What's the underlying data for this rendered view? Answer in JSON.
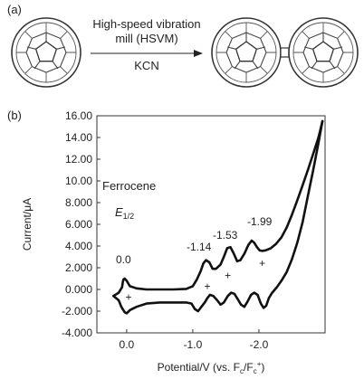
{
  "panel_a_label": "(a)",
  "panel_b_label": "(b)",
  "reaction": {
    "condition_line1": "High-speed vibration",
    "condition_line2": "mill (HSVM)",
    "reagent": "KCN"
  },
  "chart_data": {
    "type": "line",
    "title": "",
    "xlabel": "Potential/V (vs. Fc/Fc+)",
    "ylabel": "Current/μA",
    "x_tick_labels": [
      "0.0",
      "-1.0",
      "-2.0"
    ],
    "x_tick_values": [
      0.0,
      -1.0,
      -2.0
    ],
    "y_tick_labels": [
      "-4.000",
      "-2.000",
      "0.000",
      "2.000",
      "4.000",
      "6.000",
      "8.000",
      "10.00",
      "12.00",
      "14.00",
      "16.00"
    ],
    "y_tick_values": [
      -4,
      -2,
      0,
      2,
      4,
      6,
      8,
      10,
      12,
      14,
      16
    ],
    "xlim": [
      0.45,
      -3.0
    ],
    "ylim": [
      -4,
      16
    ],
    "annotations": {
      "ferrocene": "Ferrocene",
      "e_half_main": "E",
      "e_half_sub": "1/2",
      "peak_labels": [
        "0.0",
        "-1.14",
        "-1.53",
        "-1.99"
      ]
    },
    "series": [
      {
        "x": [
          0.2,
          0.12,
          0.07,
          0.06,
          0.05,
          0.03,
          0.0,
          -0.05,
          -0.15,
          -0.3,
          -0.5,
          -0.7,
          -0.9,
          -1.0,
          -1.06,
          -1.12,
          -1.16,
          -1.2,
          -1.25,
          -1.3,
          -1.35,
          -1.42,
          -1.47,
          -1.52,
          -1.57,
          -1.62,
          -1.67,
          -1.72,
          -1.78,
          -1.84,
          -1.89,
          -1.93,
          -1.97,
          -2.01,
          -2.05,
          -2.1,
          -2.18,
          -2.26,
          -2.34,
          -2.42,
          -2.5,
          -2.58,
          -2.66,
          -2.74,
          -2.82,
          -2.9,
          -2.96
        ],
        "y": [
          -0.6,
          -0.3,
          0.2,
          0.6,
          0.9,
          1.0,
          0.8,
          0.3,
          0.1,
          0.0,
          0.0,
          0.0,
          0.05,
          0.3,
          0.9,
          1.7,
          2.4,
          2.7,
          2.5,
          1.9,
          1.9,
          2.3,
          3.0,
          3.8,
          3.9,
          3.3,
          2.6,
          2.7,
          3.3,
          4.1,
          4.5,
          4.3,
          3.9,
          3.6,
          3.55,
          3.6,
          3.8,
          4.2,
          4.8,
          5.7,
          6.9,
          8.2,
          9.6,
          11.0,
          12.5,
          14.0,
          15.5
        ]
      },
      {
        "x": [
          -2.96,
          -2.9,
          -2.82,
          -2.74,
          -2.66,
          -2.58,
          -2.5,
          -2.42,
          -2.34,
          -2.27,
          -2.2,
          -2.15,
          -2.11,
          -2.07,
          -2.03,
          -1.98,
          -1.93,
          -1.88,
          -1.83,
          -1.78,
          -1.73,
          -1.68,
          -1.63,
          -1.58,
          -1.53,
          -1.47,
          -1.42,
          -1.37,
          -1.31,
          -1.26,
          -1.22,
          -1.18,
          -1.13,
          -1.08,
          -1.03,
          -0.98,
          -0.9,
          -0.7,
          -0.5,
          -0.3,
          -0.15,
          -0.05,
          0.0,
          0.03,
          0.05,
          0.08,
          0.12,
          0.2
        ],
        "y": [
          15.5,
          13.5,
          11.0,
          8.6,
          6.2,
          4.3,
          2.8,
          1.6,
          0.8,
          0.2,
          -0.3,
          -0.8,
          -1.5,
          -1.7,
          -1.3,
          -0.5,
          -0.3,
          -0.5,
          -1.1,
          -1.6,
          -1.4,
          -0.9,
          -0.4,
          -0.3,
          -0.6,
          -1.2,
          -1.4,
          -1.0,
          -0.6,
          -0.5,
          -0.8,
          -1.2,
          -1.6,
          -2.0,
          -1.8,
          -1.3,
          -1.2,
          -1.2,
          -1.2,
          -1.3,
          -1.6,
          -1.9,
          -2.2,
          -2.1,
          -1.9,
          -1.6,
          -1.0,
          -0.6
        ]
      }
    ],
    "markers": [
      {
        "x": -0.03,
        "y": -0.7,
        "label": "+"
      },
      {
        "x": -1.22,
        "y": 0.3,
        "label": "+"
      },
      {
        "x": -1.53,
        "y": 1.3,
        "label": "+"
      },
      {
        "x": -2.05,
        "y": 2.4,
        "label": "+"
      }
    ]
  }
}
